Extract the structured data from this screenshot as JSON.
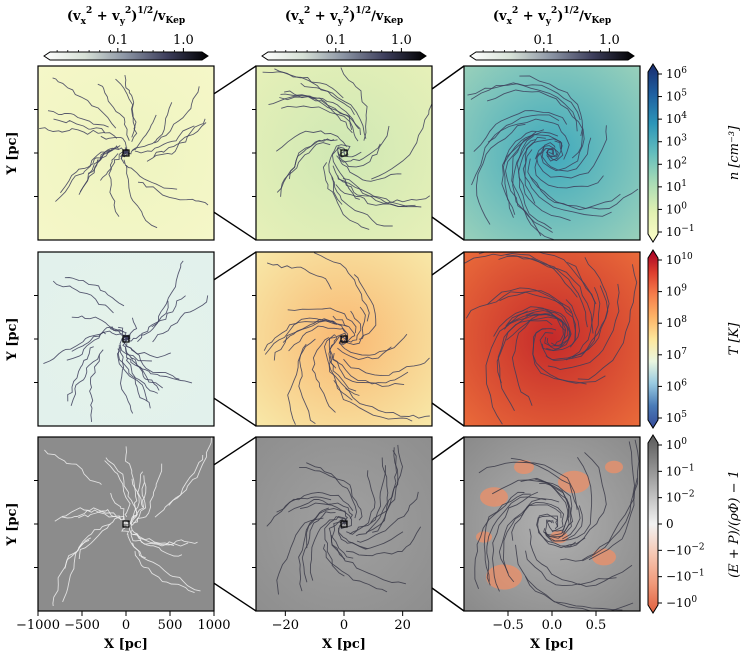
{
  "chart_data": {
    "type": "streamline-grid",
    "panels_layout": "3 rows x 3 columns, each row zooms into the central square of the previous column",
    "velocity_colorbar": {
      "label": "(v_x^2 + v_y^2)^{1/2}/v_Kep",
      "ticks": [
        "0.1",
        "1.0"
      ],
      "scale": "log",
      "colors": [
        "#ffffff",
        "#d7e1d7",
        "#8a93a3",
        "#3d3e5c",
        "#000000"
      ]
    },
    "columns": [
      {
        "xlabel": "X [pc]",
        "xticks": [
          "−1000",
          "−500",
          "0",
          "500",
          "1000"
        ],
        "xlim": [
          -1000,
          1000
        ]
      },
      {
        "xlabel": "X [pc]",
        "xticks": [
          "−20",
          "0",
          "20"
        ],
        "xlim": [
          -30,
          30
        ]
      },
      {
        "xlabel": "X [pc]",
        "xticks": [
          "−0.5",
          "0.0",
          "0.5"
        ],
        "xlim": [
          -1,
          1
        ]
      }
    ],
    "rows": [
      {
        "ylabel": "Y [pc]",
        "quantity": "density",
        "colorbar_label": "n [cm^-3]",
        "colorbar_ticks": [
          "10^6",
          "10^5",
          "10^4",
          "10^3",
          "10^2",
          "10^1",
          "10^0",
          "10^-1"
        ],
        "colorbar_colors": [
          "#1a2c6e",
          "#1f5fa0",
          "#2c95b8",
          "#63bdbd",
          "#a8dbb5",
          "#e2f1b2",
          "#fdfec8"
        ],
        "panel_fills": [
          "#f5f7c8",
          "#e6f0b8",
          "#98d0bb"
        ],
        "panel_centers": [
          "#eef4c0",
          "#cfe8b4",
          "#3fa9bd"
        ]
      },
      {
        "ylabel": "Y [pc]",
        "quantity": "temperature",
        "colorbar_label": "T [K]",
        "colorbar_ticks": [
          "10^10",
          "10^9",
          "10^8",
          "10^7",
          "10^6",
          "10^5"
        ],
        "colorbar_colors": [
          "#a50026",
          "#dd3d2d",
          "#f67e4b",
          "#fdb366",
          "#fee79b",
          "#eaf6e0",
          "#98cae1",
          "#4a7bb7",
          "#364b9a"
        ],
        "panel_fills": [
          "#e2f1ec",
          "#f8e8a8",
          "#e96a3a"
        ],
        "panel_centers": [
          "#e4f2ea",
          "#f9b872",
          "#c52a2a"
        ]
      },
      {
        "ylabel": "Y [pc]",
        "quantity": "boundness",
        "colorbar_label": "(E + P)/(ρΦ) − 1",
        "colorbar_ticks": [
          "10^0",
          "10^-1",
          "10^-2",
          "0",
          "−10^-2",
          "−10^-1",
          "−10^0"
        ],
        "colorbar_colors": [
          "#5a5a5a",
          "#8a8a8a",
          "#bdbdbd",
          "#f2f2f2",
          "#f6c8b4",
          "#f19a7a",
          "#e0603f"
        ],
        "panel_fills": [
          "#8c8c8c",
          "#8e8e8e",
          "#8a8a8a"
        ],
        "panel_centers": [
          "#8c8c8c",
          "#a0a0a0",
          "#b0b0b0"
        ]
      }
    ]
  }
}
